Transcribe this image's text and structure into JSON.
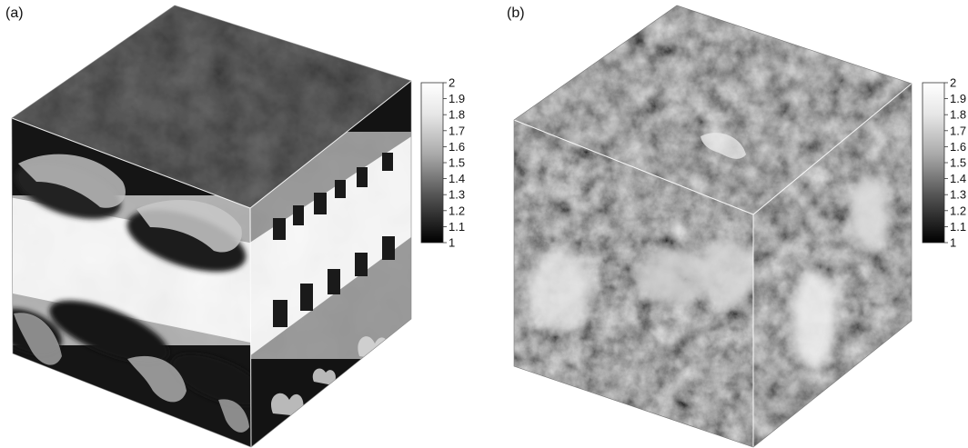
{
  "panels": [
    {
      "label": "(a)",
      "colorbar": {
        "ticks": [
          "2",
          "1.9",
          "1.8",
          "1.7",
          "1.6",
          "1.5",
          "1.4",
          "1.3",
          "1.2",
          "1.1",
          "1"
        ]
      }
    },
    {
      "label": "(b)",
      "colorbar": {
        "ticks": [
          "2",
          "1.9",
          "1.8",
          "1.7",
          "1.6",
          "1.5",
          "1.4",
          "1.3",
          "1.2",
          "1.1",
          "1"
        ]
      }
    }
  ],
  "colors": {
    "colorbar_top": "#ffffff",
    "colorbar_bottom": "#000000",
    "cube_a_dark": "#151515",
    "cube_a_light": "#f2f2f2",
    "cube_b_mid": "#5a5a5a"
  }
}
